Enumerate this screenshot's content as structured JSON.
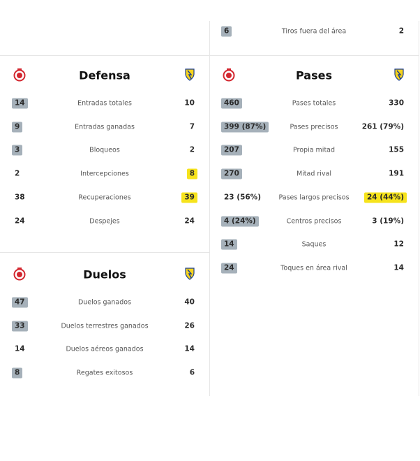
{
  "sections": [
    {
      "rows": [
        {
          "home": "6",
          "label": "Tiros fuera del área",
          "away": "2",
          "highlight": "home"
        }
      ]
    },
    {
      "title": "Defensa",
      "rows": [
        {
          "home": "14",
          "label": "Entradas totales",
          "away": "10",
          "highlight": "home"
        },
        {
          "home": "9",
          "label": "Entradas ganadas",
          "away": "7",
          "highlight": "home"
        },
        {
          "home": "3",
          "label": "Bloqueos",
          "away": "2",
          "highlight": "home"
        },
        {
          "home": "2",
          "label": "Intercepciones",
          "away": "8",
          "highlight": "away"
        },
        {
          "home": "38",
          "label": "Recuperaciones",
          "away": "39",
          "highlight": "away"
        },
        {
          "home": "24",
          "label": "Despejes",
          "away": "24"
        }
      ]
    },
    {
      "title": "Pases",
      "rows": [
        {
          "home": "460",
          "label": "Pases totales",
          "away": "330",
          "highlight": "home"
        },
        {
          "home": "399 (87%)",
          "label": "Pases precisos",
          "away": "261 (79%)",
          "highlight": "home"
        },
        {
          "home": "207",
          "label": "Propia mitad",
          "away": "155",
          "highlight": "home"
        },
        {
          "home": "270",
          "label": "Mitad rival",
          "away": "191",
          "highlight": "home"
        },
        {
          "home": "23 (56%)",
          "label": "Pases largos precisos",
          "away": "24 (44%)",
          "highlight": "away"
        },
        {
          "home": "4 (24%)",
          "label": "Centros precisos",
          "away": "3 (19%)",
          "highlight": "home"
        },
        {
          "home": "14",
          "label": "Saques",
          "away": "12",
          "highlight": "home"
        },
        {
          "home": "24",
          "label": "Toques en área rival",
          "away": "14",
          "highlight": "home"
        }
      ]
    },
    {
      "title": "Duelos",
      "rows": [
        {
          "home": "47",
          "label": "Duelos ganados",
          "away": "40",
          "highlight": "home"
        },
        {
          "home": "33",
          "label": "Duelos terrestres ganados",
          "away": "26",
          "highlight": "home"
        },
        {
          "home": "14",
          "label": "Duelos aéreos ganados",
          "away": "14"
        },
        {
          "home": "8",
          "label": "Regates exitosos",
          "away": "6",
          "highlight": "home"
        }
      ]
    }
  ]
}
